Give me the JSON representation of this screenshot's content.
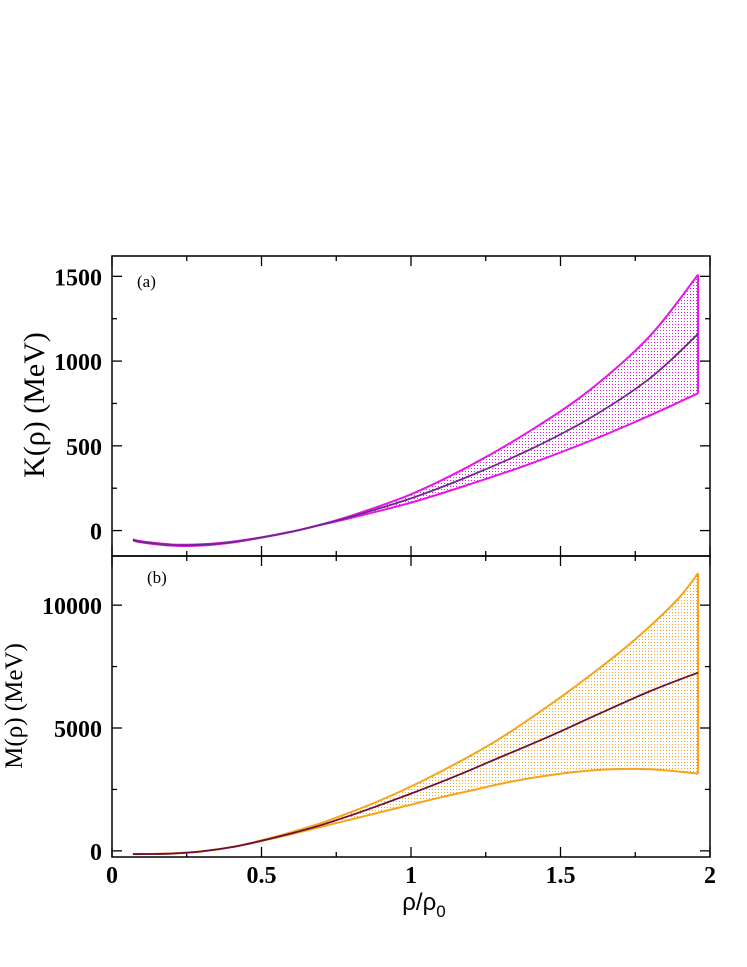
{
  "chart_data": [
    {
      "type": "area",
      "panel_label": "(a)",
      "ylabel": "K(ρ) (MeV)",
      "xlabel": "",
      "xlim": [
        0,
        2
      ],
      "ylim": [
        -150,
        1620
      ],
      "xticks": [
        0,
        0.5,
        1,
        1.5,
        2
      ],
      "yticks": [
        0,
        500,
        1000,
        1500
      ],
      "ytick_labels": [
        "0",
        "500",
        "1000",
        "1500"
      ],
      "grid": false,
      "band_color": "#e617e6",
      "center_color": "#6a2b8a",
      "x": [
        0.07,
        0.1,
        0.2,
        0.3,
        0.4,
        0.5,
        0.6,
        0.67,
        0.8,
        1.0,
        1.2,
        1.4,
        1.6,
        1.8,
        1.96
      ],
      "series": [
        {
          "role": "upper",
          "values": [
            -52,
            -64,
            -82,
            -81,
            -66,
            -40,
            -6,
            22,
            88,
            214,
            385,
            590,
            832,
            1150,
            1510
          ]
        },
        {
          "role": "center",
          "values": [
            -55,
            -67,
            -85,
            -84,
            -68,
            -40,
            -7,
            22,
            82,
            190,
            325,
            480,
            665,
            900,
            1160
          ]
        },
        {
          "role": "lower",
          "values": [
            -58,
            -70,
            -89,
            -88,
            -71,
            -42,
            -8,
            22,
            75,
            165,
            275,
            395,
            530,
            680,
            810
          ]
        }
      ]
    },
    {
      "type": "area",
      "panel_label": "(b)",
      "ylabel": "M(ρ) (MeV)",
      "xlabel": "ρ/ρ",
      "xlabel_sub": "0",
      "xlim": [
        0,
        2
      ],
      "ylim": [
        -250,
        12000
      ],
      "xticks": [
        0,
        0.5,
        1,
        1.5,
        2
      ],
      "xtick_labels": [
        "0",
        "0.5",
        "1",
        "1.5",
        "2"
      ],
      "yticks": [
        0,
        5000,
        10000
      ],
      "ytick_labels": [
        "0",
        "5000",
        "10000"
      ],
      "grid": false,
      "band_color": "#f5a41c",
      "center_color": "#6b0f3a",
      "x": [
        0.07,
        0.1,
        0.2,
        0.3,
        0.4,
        0.5,
        0.6,
        0.7,
        0.8,
        0.9,
        1.0,
        1.1,
        1.2,
        1.3,
        1.4,
        1.5,
        1.6,
        1.7,
        1.8,
        1.9,
        1.96
      ],
      "series": [
        {
          "role": "upper",
          "values": [
            -130,
            -130,
            -110,
            -20,
            150,
            430,
            760,
            1130,
            1580,
            2070,
            2620,
            3230,
            3880,
            4590,
            5400,
            6250,
            7150,
            8100,
            9150,
            10350,
            11300
          ]
        },
        {
          "role": "center",
          "values": [
            -130,
            -130,
            -110,
            -20,
            150,
            410,
            710,
            1050,
            1450,
            1880,
            2330,
            2800,
            3300,
            3820,
            4330,
            4860,
            5420,
            5970,
            6500,
            6980,
            7250
          ]
        },
        {
          "role": "lower",
          "values": [
            -130,
            -130,
            -110,
            -20,
            150,
            400,
            680,
            980,
            1280,
            1580,
            1880,
            2180,
            2450,
            2730,
            2960,
            3140,
            3270,
            3330,
            3320,
            3220,
            3140
          ]
        }
      ]
    }
  ]
}
